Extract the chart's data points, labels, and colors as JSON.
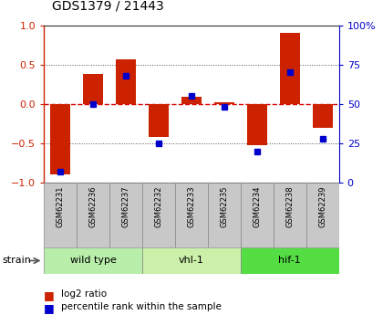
{
  "title": "GDS1379 / 21443",
  "samples": [
    "GSM62231",
    "GSM62236",
    "GSM62237",
    "GSM62232",
    "GSM62233",
    "GSM62235",
    "GSM62234",
    "GSM62238",
    "GSM62239"
  ],
  "log2_ratio": [
    -0.9,
    0.38,
    0.57,
    -0.42,
    0.09,
    0.02,
    -0.52,
    0.9,
    -0.3
  ],
  "percentile_rank": [
    7,
    50,
    68,
    25,
    55,
    48,
    20,
    70,
    28
  ],
  "groups": [
    {
      "label": "wild type",
      "indices": [
        0,
        1,
        2
      ],
      "color": "#b8eeaa"
    },
    {
      "label": "vhl-1",
      "indices": [
        3,
        4,
        5
      ],
      "color": "#ccf0aa"
    },
    {
      "label": "hif-1",
      "indices": [
        6,
        7,
        8
      ],
      "color": "#55dd44"
    }
  ],
  "bar_color": "#cc2200",
  "point_color": "#0000cc",
  "ylim_left": [
    -1,
    1
  ],
  "ylim_right": [
    0,
    100
  ],
  "yticks_left": [
    -1,
    -0.5,
    0,
    0.5,
    1
  ],
  "yticks_right": [
    0,
    25,
    50,
    75,
    100
  ],
  "hline_color": "#dd0000",
  "dotted_color": "#555555",
  "bg_color": "#ffffff",
  "plot_bg": "#ffffff",
  "right_axis_color": "#0000cc",
  "left_axis_color": "#cc2200",
  "legend_bar_label": "log2 ratio",
  "legend_point_label": "percentile rank within the sample",
  "strain_label": "strain",
  "tick_label_bg": "#c8c8c8"
}
